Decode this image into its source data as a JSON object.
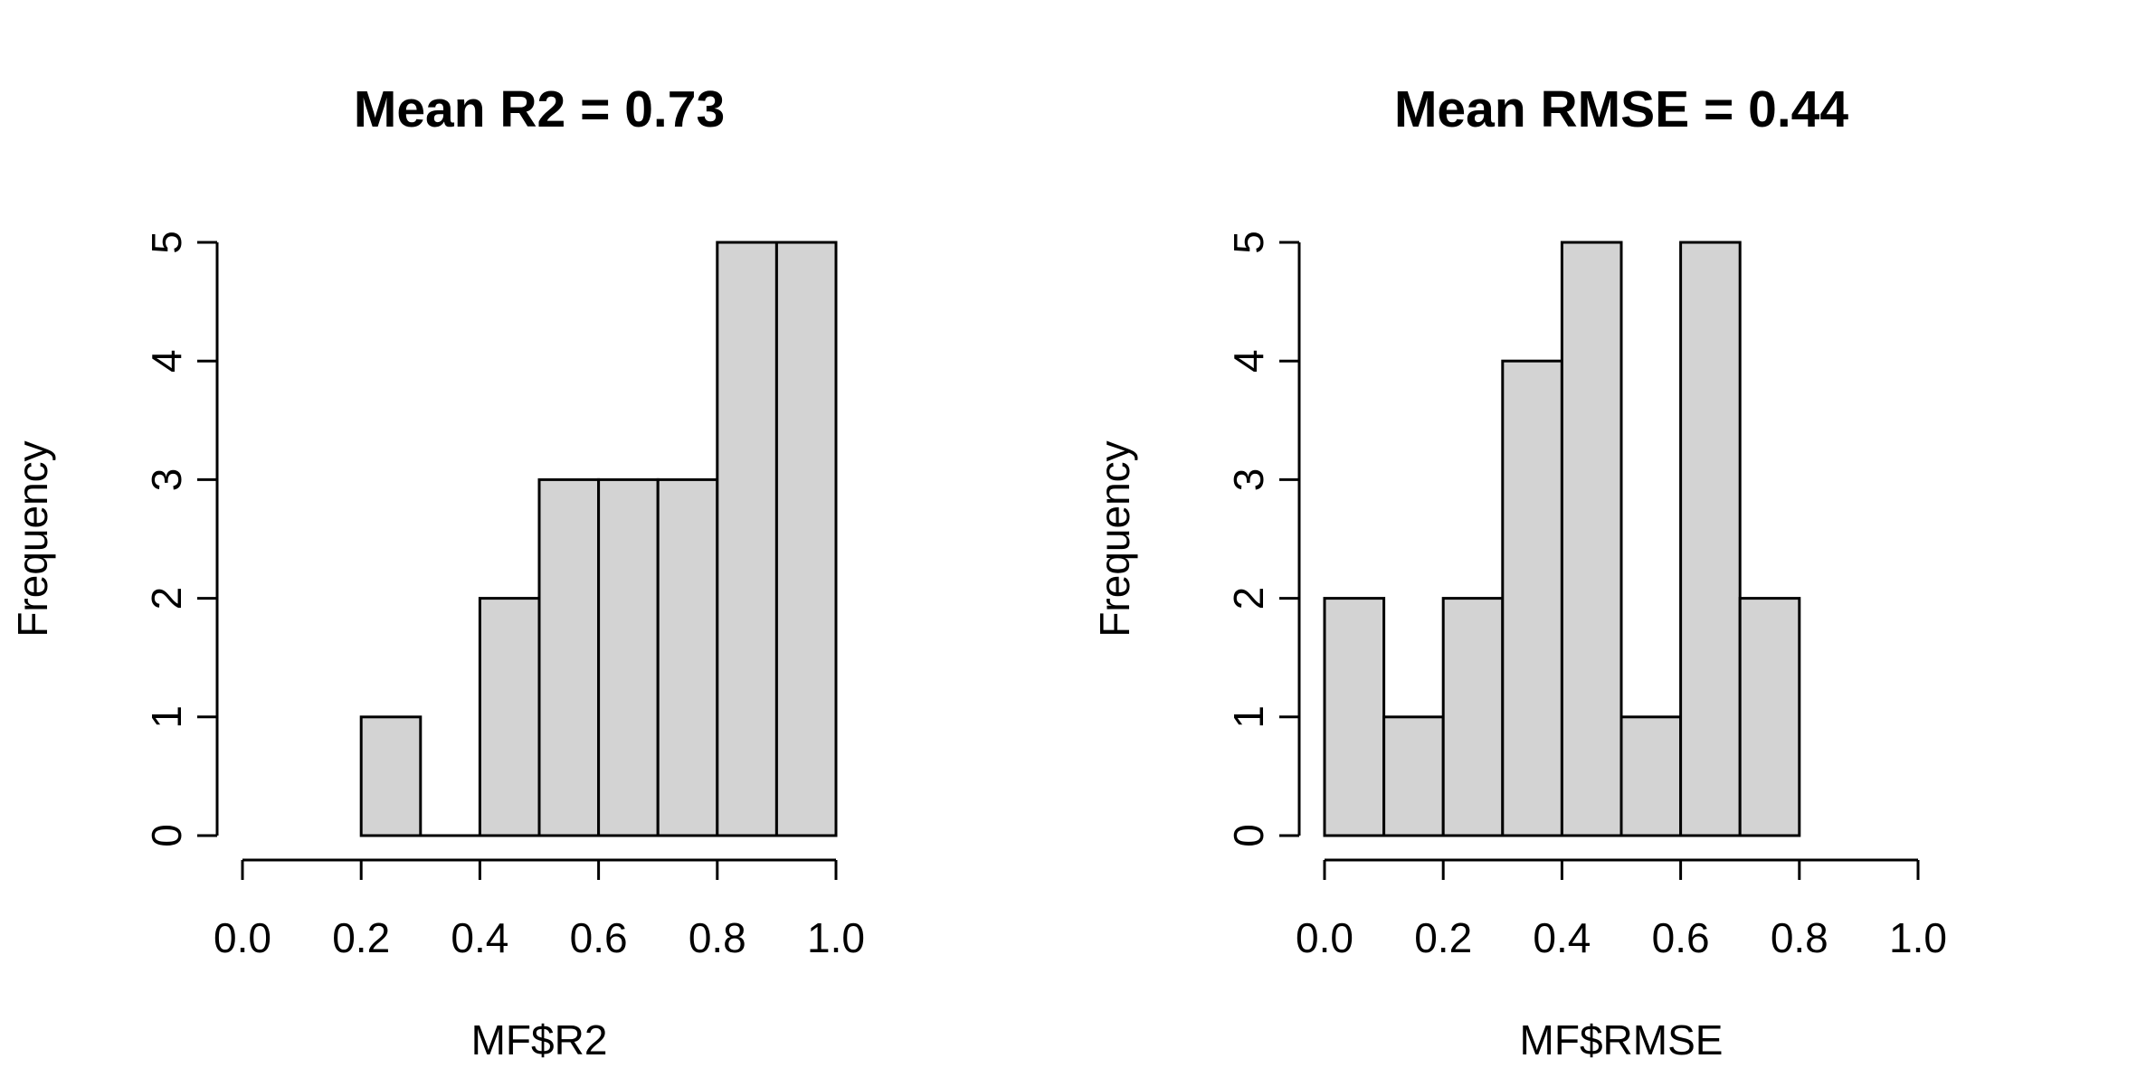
{
  "chart_data": [
    {
      "type": "bar",
      "title": "Mean R2 = 0.73",
      "xlabel": "MF$R2",
      "ylabel": "Frequency",
      "bins": [
        [
          0.2,
          0.3
        ],
        [
          0.3,
          0.4
        ],
        [
          0.4,
          0.5
        ],
        [
          0.5,
          0.6
        ],
        [
          0.6,
          0.7
        ],
        [
          0.7,
          0.8
        ],
        [
          0.8,
          0.9
        ],
        [
          0.9,
          1.0
        ]
      ],
      "values": [
        1,
        0,
        2,
        3,
        3,
        3,
        5,
        5
      ],
      "xlim": [
        0,
        1
      ],
      "ylim": [
        0,
        5
      ],
      "xticks": [
        "0.0",
        "0.2",
        "0.4",
        "0.6",
        "0.8",
        "1.0"
      ],
      "yticks": [
        "0",
        "1",
        "2",
        "3",
        "4",
        "5"
      ],
      "grid": false,
      "colors": {
        "bar_fill": "#d3d3d3",
        "bar_stroke": "#000000"
      }
    },
    {
      "type": "bar",
      "title": "Mean RMSE = 0.44",
      "xlabel": "MF$RMSE",
      "ylabel": "Frequency",
      "bins": [
        [
          0.0,
          0.1
        ],
        [
          0.1,
          0.2
        ],
        [
          0.2,
          0.3
        ],
        [
          0.3,
          0.4
        ],
        [
          0.4,
          0.5
        ],
        [
          0.5,
          0.6
        ],
        [
          0.6,
          0.7
        ],
        [
          0.7,
          0.8
        ]
      ],
      "values": [
        2,
        1,
        2,
        4,
        5,
        1,
        5,
        2
      ],
      "xlim": [
        0,
        1
      ],
      "ylim": [
        0,
        5
      ],
      "xticks": [
        "0.0",
        "0.2",
        "0.4",
        "0.6",
        "0.8",
        "1.0"
      ],
      "yticks": [
        "0",
        "1",
        "2",
        "3",
        "4",
        "5"
      ],
      "grid": false,
      "colors": {
        "bar_fill": "#d3d3d3",
        "bar_stroke": "#000000"
      }
    }
  ]
}
